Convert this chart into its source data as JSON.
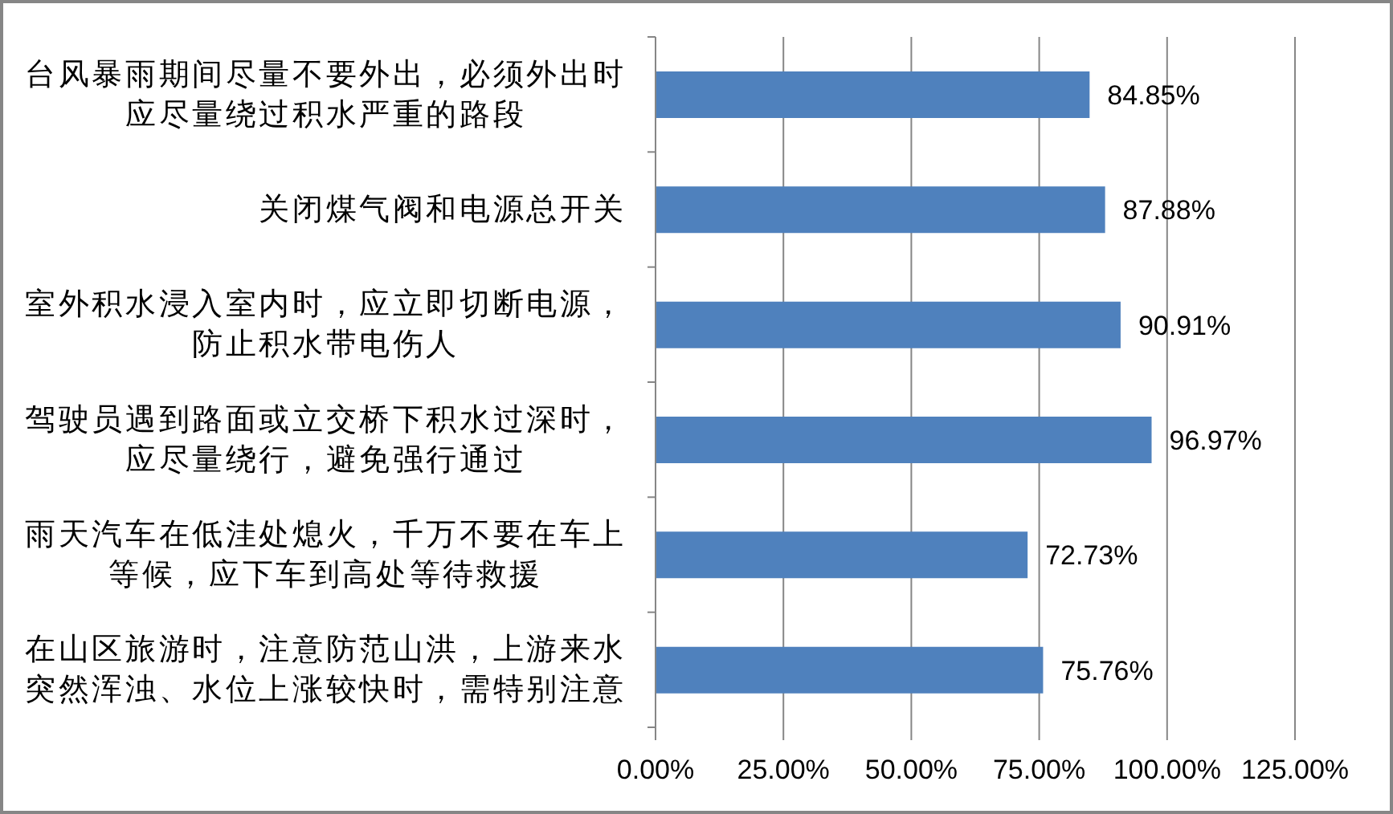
{
  "chart_data": {
    "type": "bar",
    "orientation": "horizontal",
    "categories": [
      "台风暴雨期间尽量不要外出，必须外出时应尽量绕过积水严重的路段",
      "关闭煤气阀和电源总开关",
      "室外积水浸入室内时，应立即切断电源，防止积水带电伤人",
      "驾驶员遇到路面或立交桥下积水过深时，应尽量绕行，避免强行通过",
      "雨天汽车在低洼处熄火，千万不要在车上等候，应下车到高处等待救援",
      "在山区旅游时，注意防范山洪，上游来水突然浑浊、水位上涨较快时，需特别注意"
    ],
    "values": [
      84.85,
      87.88,
      90.91,
      96.97,
      72.73,
      75.76
    ],
    "value_labels": [
      "84.85%",
      "87.88%",
      "90.91%",
      "96.97%",
      "72.73%",
      "75.76%"
    ],
    "color": "#4f81bd",
    "xlim": [
      0,
      125
    ],
    "xticks": [
      {
        "value": 0,
        "label": "0.00%"
      },
      {
        "value": 25,
        "label": "25.00%"
      },
      {
        "value": 50,
        "label": "50.00%"
      },
      {
        "value": 75,
        "label": "75.00%"
      },
      {
        "value": 100,
        "label": "100.00%"
      },
      {
        "value": 125,
        "label": "125.00%"
      }
    ],
    "grid": "x"
  }
}
